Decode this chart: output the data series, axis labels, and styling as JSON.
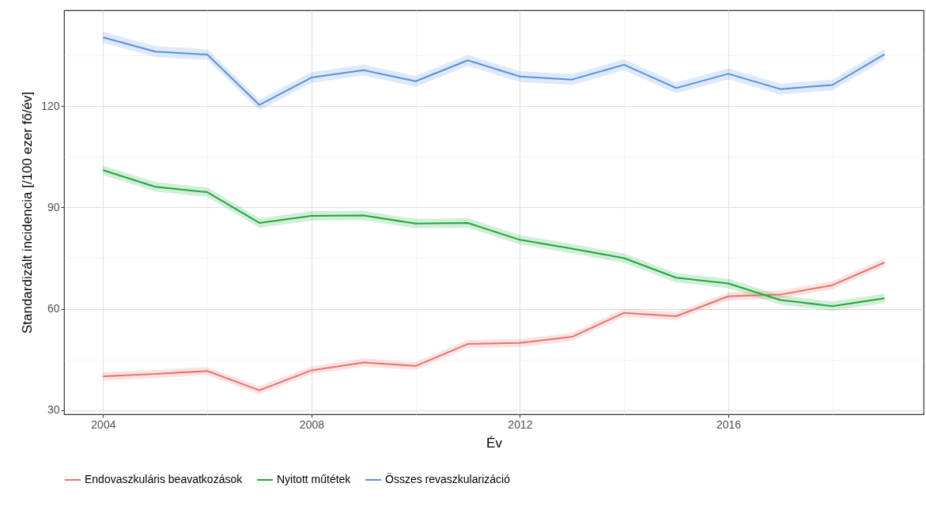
{
  "chart_data": {
    "type": "line",
    "xlabel": "Év",
    "ylabel": "Standardizált incidencia [/100 ezer fő/év]",
    "x": [
      2004,
      2005,
      2006,
      2007,
      2008,
      2009,
      2010,
      2011,
      2012,
      2013,
      2014,
      2015,
      2016,
      2017,
      2018,
      2019
    ],
    "series": [
      {
        "name": "Endovaszkuláris beavatkozások",
        "color": "#e8736c",
        "values": [
          40.0,
          40.7,
          41.6,
          35.9,
          41.8,
          44.1,
          43.1,
          49.6,
          49.9,
          51.7,
          58.8,
          57.8,
          63.7,
          64.2,
          67.0,
          73.7
        ],
        "lower": [
          38.8,
          39.5,
          40.4,
          34.7,
          40.6,
          42.9,
          41.9,
          48.4,
          48.7,
          50.5,
          57.6,
          56.6,
          62.5,
          63.0,
          65.8,
          72.5
        ],
        "upper": [
          41.2,
          41.9,
          42.8,
          37.1,
          43.0,
          45.3,
          44.3,
          50.8,
          51.1,
          52.9,
          60.0,
          59.0,
          64.9,
          65.4,
          68.2,
          74.9
        ]
      },
      {
        "name": "Nyitott műtétek",
        "color": "#1fa83d",
        "values": [
          101.0,
          96.1,
          94.5,
          85.4,
          87.5,
          87.6,
          85.2,
          85.4,
          80.4,
          77.8,
          75.0,
          69.2,
          67.5,
          62.6,
          60.8,
          63.1
        ],
        "lower": [
          99.6,
          94.7,
          93.1,
          84.0,
          86.1,
          86.2,
          83.8,
          84.0,
          79.0,
          76.4,
          73.6,
          67.8,
          66.1,
          61.2,
          59.4,
          61.7
        ],
        "upper": [
          102.4,
          97.5,
          95.9,
          86.8,
          88.9,
          89.0,
          86.6,
          86.8,
          81.8,
          79.2,
          76.4,
          70.6,
          68.9,
          64.0,
          62.2,
          64.5
        ]
      },
      {
        "name": "Összes revaszkularizáció",
        "color": "#5a8fe0",
        "values": [
          140.3,
          136.1,
          135.2,
          120.3,
          128.4,
          130.6,
          127.3,
          133.5,
          128.7,
          127.8,
          132.2,
          125.3,
          129.5,
          125.0,
          126.2,
          135.3
        ],
        "lower": [
          138.7,
          134.5,
          133.6,
          118.7,
          126.8,
          129.0,
          125.7,
          131.9,
          127.1,
          126.2,
          130.6,
          123.7,
          127.9,
          123.4,
          124.6,
          133.7
        ],
        "upper": [
          141.9,
          137.7,
          136.8,
          121.9,
          130.0,
          132.2,
          128.9,
          135.1,
          130.3,
          129.4,
          133.8,
          126.9,
          131.1,
          126.6,
          127.8,
          136.9
        ]
      }
    ],
    "xlim": [
      2003.25,
      2019.75
    ],
    "xticks": [
      2004,
      {
        "value": 2006,
        "label": null
      },
      2008,
      {
        "value": 2010,
        "label": null
      },
      2012,
      {
        "value": 2014,
        "label": null
      },
      2016,
      {
        "value": 2018,
        "label": null
      }
    ],
    "ylim": [
      28.8,
      148.3
    ],
    "yticks": [
      30,
      {
        "value": 45,
        "label": null
      },
      60,
      {
        "value": 75,
        "label": null
      },
      90,
      {
        "value": 105,
        "label": null
      },
      120,
      {
        "value": 135,
        "label": null
      }
    ],
    "grid": true,
    "legend": "bottom",
    "line_style": "solid"
  }
}
